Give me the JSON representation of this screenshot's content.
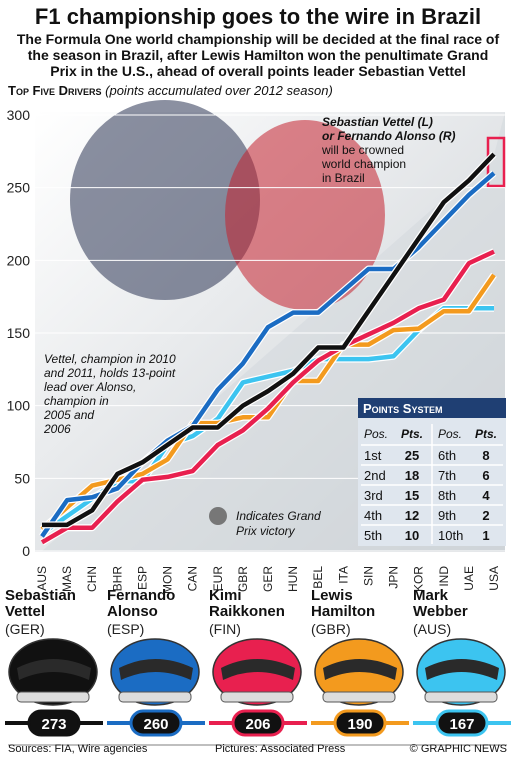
{
  "chart_data": {
    "type": "line",
    "title": "F1 championship goes to the wire in Brazil",
    "subtitle": [
      "The Formula One world championship will be decided at the final race of",
      "the season in Brazil, after Lewis Hamilton won the penultimate Grand",
      "Prix in the U.S., ahead of overall points leader Sebastian Vettel"
    ],
    "section_title": "Top Five Drivers",
    "section_note": "(points accumulated over 2012 season)",
    "categories": [
      "AUS",
      "MAS",
      "CHN",
      "BHR",
      "ESP",
      "MON",
      "CAN",
      "EUR",
      "GBR",
      "GER",
      "HUN",
      "BEL",
      "ITA",
      "SIN",
      "JPN",
      "KOR",
      "IND",
      "UAE",
      "USA"
    ],
    "series": [
      {
        "name": "Sebastian Vettel",
        "country": "(GER)",
        "color": "#111111",
        "values": [
          18,
          18,
          28,
          53,
          61,
          73,
          85,
          85,
          100,
          110,
          122,
          140,
          140,
          165,
          190,
          215,
          240,
          255,
          273
        ]
      },
      {
        "name": "Fernando Alonso",
        "country": "(ESP)",
        "color": "#1b6cc3",
        "values": [
          10,
          35,
          37,
          43,
          61,
          76,
          86,
          111,
          129,
          154,
          164,
          164,
          179,
          194,
          194,
          209,
          227,
          245,
          260
        ]
      },
      {
        "name": "Kimi Raikkonen",
        "country": "(FIN)",
        "color": "#e8204f",
        "values": [
          6,
          16,
          16,
          34,
          49,
          51,
          55,
          73,
          83,
          98,
          116,
          131,
          141,
          149,
          157,
          167,
          173,
          198,
          206
        ]
      },
      {
        "name": "Lewis Hamilton",
        "country": "(GBR)",
        "color": "#f39a1e",
        "values": [
          15,
          30,
          45,
          49,
          53,
          63,
          88,
          88,
          92,
          92,
          117,
          117,
          142,
          142,
          152,
          153,
          165,
          165,
          190
        ]
      },
      {
        "name": "Mark Webber",
        "country": "(AUS)",
        "color": "#3cc4f0",
        "values": [
          12,
          24,
          36,
          48,
          48,
          73,
          79,
          91,
          116,
          120,
          124,
          132,
          132,
          132,
          134,
          152,
          167,
          167,
          167
        ]
      }
    ],
    "ylim": [
      0,
      300
    ],
    "yticks": [
      0,
      50,
      100,
      150,
      200,
      250,
      300
    ],
    "grid": true,
    "annotations": {
      "champion": [
        "Sebastian Vettel (L)",
        "or Fernando Alonso (R)",
        "will be crowned",
        "world champion",
        "in Brazil"
      ],
      "vettel_note": [
        "Vettel, champion in 2010",
        "and 2011, holds 13-point",
        "lead over Alonso,",
        "champion in",
        "2005 and",
        "2006"
      ],
      "victory_key": [
        "Indicates Grand",
        "Prix victory"
      ]
    }
  },
  "points_table": {
    "title": "Points System",
    "header": [
      "Pos.",
      "Pts.",
      "Pos.",
      "Pts."
    ],
    "rows": [
      [
        "1st",
        25,
        "6th",
        8
      ],
      [
        "2nd",
        18,
        "7th",
        6
      ],
      [
        "3rd",
        15,
        "8th",
        4
      ],
      [
        "4th",
        12,
        "9th",
        2
      ],
      [
        "5th",
        10,
        "10th",
        1
      ]
    ]
  },
  "footer": {
    "source": "Sources: FIA, Wire agencies",
    "pictures": "Pictures: Associated Press",
    "credit": "© GRAPHIC NEWS"
  }
}
